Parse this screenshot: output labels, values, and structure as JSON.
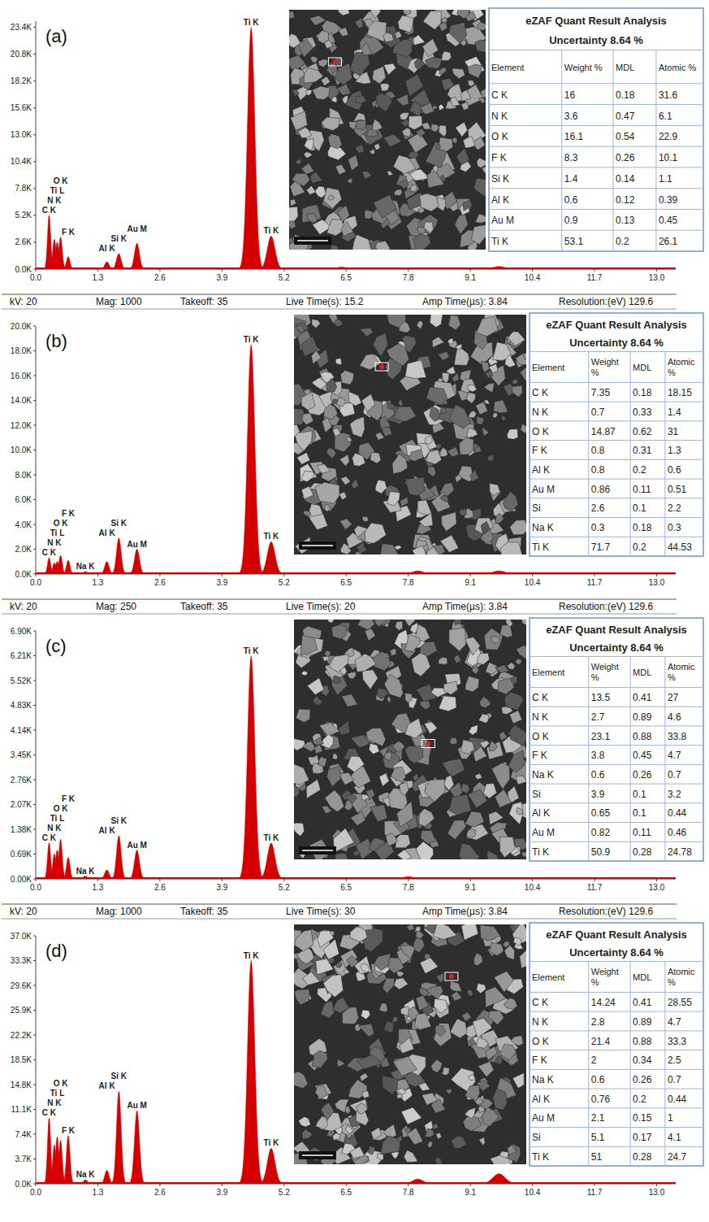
{
  "chart_data": [
    {
      "type": "spectrum",
      "title": "(a)",
      "color": "#d40000",
      "xlim": [
        0,
        13.4
      ],
      "xticks": [
        {
          "value": 0,
          "label": "0.0"
        },
        1.3,
        2.6,
        3.9,
        5.2,
        6.5,
        7.8,
        9.1,
        10.4,
        11.7,
        {
          "value": 13,
          "label": "13.0"
        }
      ],
      "ylim": [
        0,
        24000
      ],
      "yticks": [
        {
          "value": 0,
          "label": "0.0K"
        },
        {
          "value": 2600,
          "label": "2.6K"
        },
        {
          "value": 5200,
          "label": "5.2K"
        },
        {
          "value": 7800,
          "label": "7.8K"
        },
        {
          "value": 10400,
          "label": "10.4K"
        },
        {
          "value": 13000,
          "label": "13.0K"
        },
        {
          "value": 15600,
          "label": "15.6K"
        },
        {
          "value": 18200,
          "label": "18.2K"
        },
        {
          "value": 20800,
          "label": "20.8K"
        },
        {
          "value": 23400,
          "label": "23.4K"
        }
      ],
      "x": [
        0.28,
        0.39,
        0.45,
        0.52,
        0.68,
        1.49,
        1.74,
        2.12,
        4.51,
        4.93,
        6.4,
        9.7
      ],
      "values": [
        5200,
        2900,
        2600,
        3100,
        1200,
        700,
        1500,
        2500,
        23400,
        3200,
        200,
        250
      ],
      "peak_labels": [
        "C K",
        "N K",
        "Ti L",
        "O K",
        "F K",
        "Al K",
        "Si K",
        "Au M",
        "Ti K",
        "Ti K",
        null,
        null
      ],
      "table": {
        "title": "eZAF Quant Result Analysis",
        "subtitle": "Uncertainty 8.64 %",
        "columns": [
          "Element",
          "Weight %",
          "MDL",
          "Atomic %"
        ],
        "rows": [
          [
            "C K",
            16,
            0.18,
            31.6
          ],
          [
            "N K",
            3.6,
            0.47,
            6.1
          ],
          [
            "O K",
            16.1,
            0.54,
            22.9
          ],
          [
            "F K",
            8.3,
            0.26,
            10.1
          ],
          [
            "Si K",
            1.4,
            0.14,
            1.1
          ],
          [
            "Al K",
            0.6,
            0.12,
            0.39
          ],
          [
            "Au M",
            0.9,
            0.13,
            0.45
          ],
          [
            "Ti K",
            53.1,
            0.2,
            26.1
          ]
        ]
      }
    },
    {
      "type": "spectrum",
      "title": "(b)",
      "color": "#d40000",
      "acquisition": [
        "kV: 20",
        "Mag: 1000",
        "Takeoff: 35",
        "Live Time(s): 15.2",
        "Amp Time(µs): 3.84",
        "Resolution:(eV) 129.6"
      ],
      "xlim": [
        0,
        13.4
      ],
      "xticks": [
        {
          "value": 0,
          "label": "0.0"
        },
        1.3,
        2.6,
        3.9,
        5.2,
        6.5,
        7.8,
        9.1,
        10.4,
        11.7,
        {
          "value": 13,
          "label": "13.0"
        }
      ],
      "ylim": [
        0,
        20000
      ],
      "yticks": [
        {
          "value": 0,
          "label": "0.0K"
        },
        {
          "value": 2000,
          "label": "2.0K"
        },
        {
          "value": 4000,
          "label": "4.0K"
        },
        {
          "value": 6000,
          "label": "6.0K"
        },
        {
          "value": 8000,
          "label": "8.0K"
        },
        {
          "value": 10000,
          "label": "10.0K"
        },
        {
          "value": 12000,
          "label": "12.0K"
        },
        {
          "value": 14000,
          "label": "14.0K"
        },
        {
          "value": 16000,
          "label": "16.0K"
        },
        {
          "value": 18000,
          "label": "18.0K"
        },
        {
          "value": 20000,
          "label": "20.0K"
        }
      ],
      "x": [
        0.28,
        0.39,
        0.45,
        0.52,
        0.68,
        1.04,
        1.49,
        1.74,
        2.12,
        4.51,
        4.93,
        8.0,
        9.7
      ],
      "values": [
        1300,
        900,
        1000,
        1500,
        1100,
        200,
        1000,
        2900,
        2000,
        18500,
        2600,
        250,
        250
      ],
      "peak_labels": [
        "C K",
        "N K",
        "Ti L",
        "O K",
        "F K",
        "Na K",
        "Al K",
        "Si K",
        "Au M",
        "Ti K",
        "Ti K",
        null,
        null
      ],
      "table": {
        "title": "eZAF Quant Result Analysis",
        "subtitle": "Uncertainty 8.64 %",
        "columns": [
          "Element",
          "Weight %",
          "MDL",
          "Atomic %"
        ],
        "rows": [
          [
            "C K",
            7.35,
            0.18,
            18.15
          ],
          [
            "N K",
            0.7,
            0.33,
            1.4
          ],
          [
            "O K",
            14.87,
            0.62,
            31
          ],
          [
            "F K",
            0.8,
            0.31,
            1.3
          ],
          [
            "Al K",
            0.8,
            0.2,
            0.6
          ],
          [
            "Au M",
            0.86,
            0.11,
            0.51
          ],
          [
            "Si",
            2.6,
            0.1,
            2.2
          ],
          [
            "Na K",
            0.3,
            0.18,
            0.3
          ],
          [
            "Ti K",
            71.7,
            0.2,
            44.53
          ]
        ]
      }
    },
    {
      "type": "spectrum",
      "title": "(c)",
      "color": "#d40000",
      "acquisition": [
        "kV: 20",
        "Mag: 250",
        "Takeoff: 35",
        "Live Time(s): 20",
        "Amp Time(µs): 3.84",
        "Resolution:(eV) 129.6"
      ],
      "xlim": [
        0,
        13.4
      ],
      "xticks": [
        {
          "value": 0,
          "label": "0.0"
        },
        1.3,
        2.6,
        3.9,
        5.2,
        6.5,
        7.8,
        9.1,
        10.4,
        11.7,
        {
          "value": 13,
          "label": "13.0"
        }
      ],
      "ylim": [
        0,
        6900
      ],
      "yticks": [
        {
          "value": 0,
          "label": "0.00K"
        },
        {
          "value": 690,
          "label": "0.69K"
        },
        {
          "value": 1380,
          "label": "1.38K"
        },
        {
          "value": 2070,
          "label": "2.07K"
        },
        {
          "value": 2760,
          "label": "2.76K"
        },
        {
          "value": 3450,
          "label": "3.45K"
        },
        {
          "value": 4140,
          "label": "4.14K"
        },
        {
          "value": 4830,
          "label": "4.83K"
        },
        {
          "value": 5520,
          "label": "5.52K"
        },
        {
          "value": 6210,
          "label": "6.21K"
        },
        {
          "value": 6900,
          "label": "6.90K"
        }
      ],
      "x": [
        0.28,
        0.39,
        0.45,
        0.52,
        0.68,
        1.04,
        1.49,
        1.74,
        2.12,
        4.51,
        4.93,
        7.8
      ],
      "values": [
        1000,
        700,
        800,
        1100,
        600,
        80,
        250,
        1200,
        800,
        6200,
        1000,
        60
      ],
      "peak_labels": [
        "C K",
        "N K",
        "Ti L",
        "O K",
        "F K",
        "Na K",
        "Al K",
        "Si K",
        "Au M",
        "Ti K",
        "Ti K",
        null
      ],
      "table": {
        "title": "eZAF Quant Result Analysis",
        "subtitle": "Uncertainty 8.64 %",
        "columns": [
          "Element",
          "Weight %",
          "MDL",
          "Atomic %"
        ],
        "rows": [
          [
            "C K",
            13.5,
            0.41,
            27
          ],
          [
            "N K",
            2.7,
            0.89,
            4.6
          ],
          [
            "O K",
            23.1,
            0.88,
            33.8
          ],
          [
            "F K",
            3.8,
            0.45,
            4.7
          ],
          [
            "Na K",
            0.6,
            0.26,
            0.7
          ],
          [
            "Si",
            3.9,
            0.1,
            3.2
          ],
          [
            "Al K",
            0.65,
            0.1,
            0.44
          ],
          [
            "Au M",
            0.82,
            0.11,
            0.46
          ],
          [
            "Ti K",
            50.9,
            0.28,
            24.78
          ]
        ]
      }
    },
    {
      "type": "spectrum",
      "title": "(d)",
      "color": "#d40000",
      "acquisition": [
        "kV: 20",
        "Mag: 1000",
        "Takeoff: 35",
        "Live Time(s): 30",
        "Amp Time(µs): 3.84",
        "Resolution:(eV) 129.6"
      ],
      "xlim": [
        0,
        13.4
      ],
      "xticks": [
        {
          "value": 0,
          "label": "0.0"
        },
        1.3,
        2.6,
        3.9,
        5.2,
        6.5,
        7.8,
        9.1,
        10.4,
        11.7,
        {
          "value": 13,
          "label": "13.0"
        }
      ],
      "ylim": [
        0,
        37000
      ],
      "yticks": [
        {
          "value": 0,
          "label": "0.0K"
        },
        {
          "value": 3700,
          "label": "3.7K"
        },
        {
          "value": 7400,
          "label": "7.4K"
        },
        {
          "value": 11100,
          "label": "11.1K"
        },
        {
          "value": 14800,
          "label": "14.8K"
        },
        {
          "value": 18500,
          "label": "18.5K"
        },
        {
          "value": 22200,
          "label": "22.2K"
        },
        {
          "value": 25900,
          "label": "25.9K"
        },
        {
          "value": 29600,
          "label": "29.6K"
        },
        {
          "value": 33300,
          "label": "33.3K"
        },
        {
          "value": 37000,
          "label": "37.0K"
        }
      ],
      "x": [
        0.28,
        0.39,
        0.45,
        0.52,
        0.68,
        1.04,
        1.49,
        1.74,
        2.12,
        4.51,
        4.93,
        8.0,
        9.7
      ],
      "values": [
        9800,
        5800,
        7000,
        6500,
        7200,
        600,
        2000,
        13800,
        10900,
        33300,
        5300,
        700,
        1500
      ],
      "peak_labels": [
        "C K",
        "N K",
        "Ti L",
        "O K",
        "F K",
        "Na K",
        "Al K",
        "Si K",
        "Au M",
        "Ti K",
        "Ti K",
        null,
        null
      ],
      "table": {
        "title": "eZAF Quant Result Analysis",
        "subtitle": "Uncertainty 8.64 %",
        "columns": [
          "Element",
          "Weight %",
          "MDL",
          "Atomic %"
        ],
        "rows": [
          [
            "C K",
            14.24,
            0.41,
            28.55
          ],
          [
            "N K",
            2.8,
            0.89,
            4.7
          ],
          [
            "O K",
            21.4,
            0.88,
            33.3
          ],
          [
            "F K",
            2,
            0.34,
            2.5
          ],
          [
            "Na K",
            0.6,
            0.26,
            0.7
          ],
          [
            "Al K",
            0.76,
            0.2,
            0.44
          ],
          [
            "Au M",
            2.1,
            0.15,
            1
          ],
          [
            "Si",
            5.1,
            0.17,
            4.1
          ],
          [
            "Ti K",
            51,
            0.28,
            24.7
          ]
        ]
      }
    }
  ]
}
